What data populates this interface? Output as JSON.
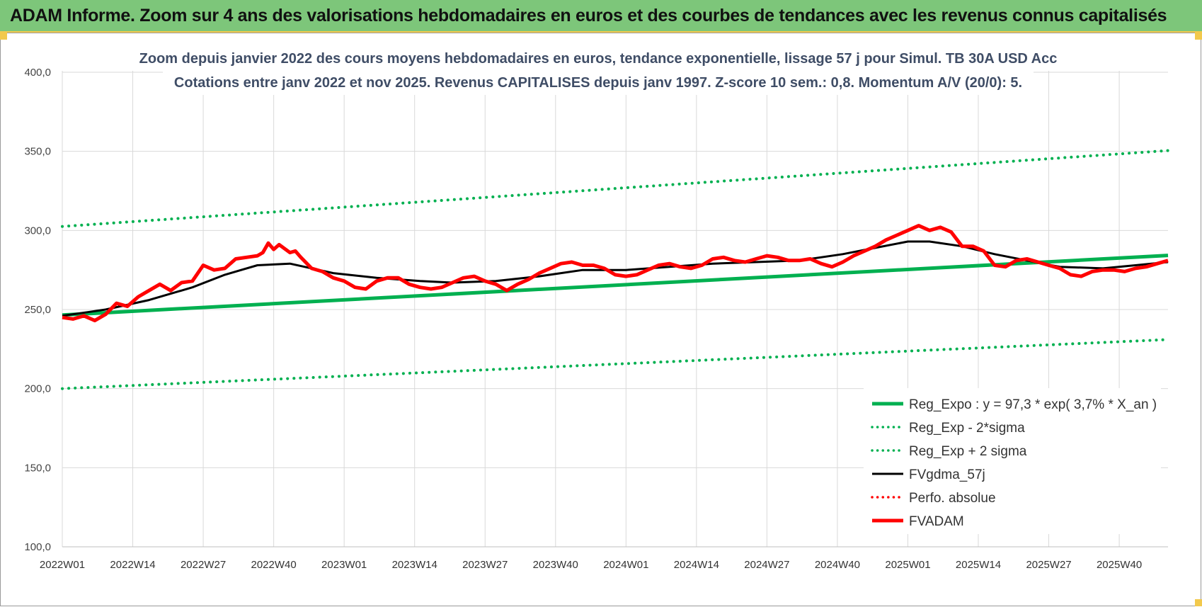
{
  "banner": {
    "title": "ADAM Informe. Zoom sur 4 ans des valorisations hebdomadaires en euros et des courbes de tendances avec les revenus connus capitalisés"
  },
  "colors": {
    "banner_bg": "#7dc67a",
    "trend_green": "#00b050",
    "price_red": "#ff0000",
    "mma_black": "#000000",
    "title_text": "#3f4d66"
  },
  "chart_data": {
    "type": "line",
    "title_lines": [
      "Zoom depuis janvier 2022 des cours moyens hebdomadaires en euros, tendance exponentielle, lissage 57 j pour Simul. TB 30A USD Acc",
      "Cotations entre janv 2022 et nov 2025. Revenus CAPITALISES depuis janv 1997. Z-score 10 sem.:  0,8. Momentum A/V (20/0): 5."
    ],
    "ylim": [
      100,
      400
    ],
    "y_ticks": [
      "100,0",
      "150,0",
      "200,0",
      "250,0",
      "300,0",
      "350,0",
      "400,0"
    ],
    "x_ticks": [
      "2022W01",
      "2022W14",
      "2022W27",
      "2022W40",
      "2023W01",
      "2023W14",
      "2023W27",
      "2023W40",
      "2024W01",
      "2024W14",
      "2024W27",
      "2024W40",
      "2025W01",
      "2025W14",
      "2025W27",
      "2025W40"
    ],
    "x_tick_positions": [
      0,
      13,
      26,
      39,
      52,
      65,
      78,
      91,
      104,
      117,
      130,
      143,
      156,
      169,
      182,
      195
    ],
    "x_max_week": 204,
    "grid": true,
    "legend_position": "bottom-right",
    "series": [
      {
        "name": "Reg_Expo : y = 97,3 * exp( 3,7% *  X_an )",
        "style": "solid-thick",
        "color": "#00b050",
        "knots": [
          [
            0,
            246.5
          ],
          [
            204,
            284.2
          ]
        ]
      },
      {
        "name": "Reg_Exp - 2*sigma",
        "style": "dotted",
        "color": "#00b050",
        "knots": [
          [
            0,
            200.0
          ],
          [
            204,
            231.0
          ]
        ]
      },
      {
        "name": "Reg_Exp + 2 sigma",
        "style": "dotted",
        "color": "#00b050",
        "knots": [
          [
            0,
            302.5
          ],
          [
            204,
            350.5
          ]
        ]
      },
      {
        "name": "FVgdma_57j",
        "style": "solid",
        "color": "#000000",
        "knots": [
          [
            0,
            246
          ],
          [
            8,
            250
          ],
          [
            16,
            256
          ],
          [
            24,
            264
          ],
          [
            30,
            272
          ],
          [
            36,
            278
          ],
          [
            42,
            279
          ],
          [
            50,
            273
          ],
          [
            58,
            270
          ],
          [
            66,
            268
          ],
          [
            72,
            267
          ],
          [
            80,
            268
          ],
          [
            88,
            271
          ],
          [
            96,
            275
          ],
          [
            104,
            275
          ],
          [
            112,
            277
          ],
          [
            120,
            279
          ],
          [
            128,
            280
          ],
          [
            136,
            281
          ],
          [
            144,
            285
          ],
          [
            150,
            289
          ],
          [
            156,
            293
          ],
          [
            160,
            293
          ],
          [
            166,
            290
          ],
          [
            172,
            285
          ],
          [
            178,
            281
          ],
          [
            184,
            277
          ],
          [
            192,
            276
          ],
          [
            198,
            278
          ],
          [
            204,
            280
          ]
        ]
      },
      {
        "name": "Perfo. absolue",
        "style": "dotted",
        "color": "#ff0000",
        "knots": []
      },
      {
        "name": "FVADAM",
        "style": "solid-thick",
        "color": "#ff0000",
        "knots": [
          [
            0,
            245
          ],
          [
            2,
            244
          ],
          [
            4,
            246
          ],
          [
            6,
            243
          ],
          [
            8,
            247
          ],
          [
            10,
            254
          ],
          [
            12,
            252
          ],
          [
            14,
            258
          ],
          [
            16,
            262
          ],
          [
            18,
            266
          ],
          [
            20,
            262
          ],
          [
            22,
            267
          ],
          [
            24,
            268
          ],
          [
            26,
            278
          ],
          [
            28,
            275
          ],
          [
            30,
            276
          ],
          [
            32,
            282
          ],
          [
            34,
            283
          ],
          [
            36,
            284
          ],
          [
            37,
            286
          ],
          [
            38,
            292
          ],
          [
            39,
            288
          ],
          [
            40,
            291
          ],
          [
            42,
            286
          ],
          [
            43,
            287
          ],
          [
            44,
            283
          ],
          [
            46,
            276
          ],
          [
            48,
            274
          ],
          [
            50,
            270
          ],
          [
            52,
            268
          ],
          [
            54,
            264
          ],
          [
            56,
            263
          ],
          [
            58,
            268
          ],
          [
            60,
            270
          ],
          [
            62,
            270
          ],
          [
            64,
            266
          ],
          [
            66,
            264
          ],
          [
            68,
            263
          ],
          [
            70,
            264
          ],
          [
            72,
            267
          ],
          [
            74,
            270
          ],
          [
            76,
            271
          ],
          [
            78,
            268
          ],
          [
            80,
            266
          ],
          [
            82,
            262
          ],
          [
            84,
            266
          ],
          [
            86,
            269
          ],
          [
            88,
            273
          ],
          [
            90,
            276
          ],
          [
            92,
            279
          ],
          [
            94,
            280
          ],
          [
            96,
            278
          ],
          [
            98,
            278
          ],
          [
            100,
            276
          ],
          [
            102,
            272
          ],
          [
            104,
            271
          ],
          [
            106,
            272
          ],
          [
            108,
            275
          ],
          [
            110,
            278
          ],
          [
            112,
            279
          ],
          [
            114,
            277
          ],
          [
            116,
            276
          ],
          [
            118,
            278
          ],
          [
            120,
            282
          ],
          [
            122,
            283
          ],
          [
            124,
            281
          ],
          [
            126,
            280
          ],
          [
            128,
            282
          ],
          [
            130,
            284
          ],
          [
            132,
            283
          ],
          [
            134,
            281
          ],
          [
            136,
            281
          ],
          [
            138,
            282
          ],
          [
            140,
            279
          ],
          [
            142,
            277
          ],
          [
            144,
            280
          ],
          [
            146,
            284
          ],
          [
            148,
            287
          ],
          [
            150,
            290
          ],
          [
            152,
            294
          ],
          [
            154,
            297
          ],
          [
            156,
            300
          ],
          [
            158,
            303
          ],
          [
            160,
            300
          ],
          [
            162,
            302
          ],
          [
            164,
            299
          ],
          [
            166,
            290
          ],
          [
            168,
            290
          ],
          [
            170,
            287
          ],
          [
            172,
            278
          ],
          [
            174,
            277
          ],
          [
            176,
            281
          ],
          [
            178,
            282
          ],
          [
            180,
            280
          ],
          [
            182,
            278
          ],
          [
            184,
            276
          ],
          [
            186,
            272
          ],
          [
            188,
            271
          ],
          [
            190,
            274
          ],
          [
            192,
            275
          ],
          [
            194,
            275
          ],
          [
            196,
            274
          ],
          [
            198,
            276
          ],
          [
            200,
            277
          ],
          [
            202,
            279
          ],
          [
            204,
            281
          ]
        ]
      }
    ]
  }
}
